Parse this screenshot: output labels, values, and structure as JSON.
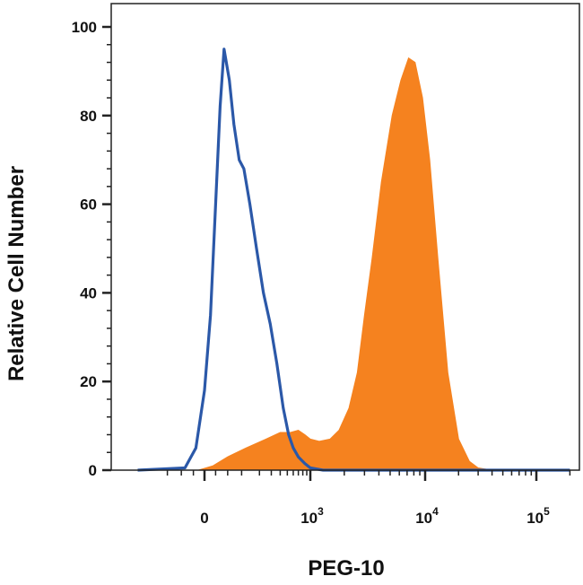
{
  "chart_data": {
    "type": "area",
    "title": "",
    "xlabel": "PEG-10",
    "ylabel": "Relative Cell Number",
    "x_scale": "biexponential",
    "xlim": [
      -300,
      200000
    ],
    "ylim": [
      0,
      100
    ],
    "y_ticks": [
      "0",
      "20",
      "40",
      "60",
      "80",
      "100"
    ],
    "x_ticks": [
      {
        "value": 0,
        "base": "0",
        "exp": ""
      },
      {
        "value": 1000,
        "base": "10",
        "exp": "3"
      },
      {
        "value": 10000,
        "base": "10",
        "exp": "4"
      },
      {
        "value": 100000,
        "base": "10",
        "exp": "5"
      }
    ],
    "grid": false,
    "series": [
      {
        "style": "filled",
        "color": "#f5821f",
        "points": [
          [
            -10,
            0
          ],
          [
            15,
            1
          ],
          [
            50,
            3
          ],
          [
            120,
            5
          ],
          [
            250,
            7
          ],
          [
            400,
            8.5
          ],
          [
            550,
            8.5
          ],
          [
            700,
            9
          ],
          [
            850,
            8
          ],
          [
            1000,
            7
          ],
          [
            1200,
            6.5
          ],
          [
            1500,
            7
          ],
          [
            1800,
            9
          ],
          [
            2200,
            14
          ],
          [
            2600,
            22
          ],
          [
            3000,
            35
          ],
          [
            3500,
            48
          ],
          [
            4200,
            65
          ],
          [
            5200,
            80
          ],
          [
            6200,
            88
          ],
          [
            7200,
            93
          ],
          [
            8200,
            92
          ],
          [
            9500,
            84
          ],
          [
            11000,
            70
          ],
          [
            13000,
            48
          ],
          [
            16000,
            22
          ],
          [
            20000,
            7
          ],
          [
            25000,
            2
          ],
          [
            30000,
            0.5
          ],
          [
            40000,
            0
          ]
        ]
      },
      {
        "style": "line",
        "color": "#2b58a8",
        "points": [
          [
            -300,
            0
          ],
          [
            -40,
            0.5
          ],
          [
            -15,
            5
          ],
          [
            0,
            18
          ],
          [
            10,
            35
          ],
          [
            20,
            60
          ],
          [
            30,
            82
          ],
          [
            40,
            95
          ],
          [
            55,
            88
          ],
          [
            70,
            78
          ],
          [
            90,
            70
          ],
          [
            110,
            68
          ],
          [
            140,
            60
          ],
          [
            180,
            50
          ],
          [
            230,
            40
          ],
          [
            290,
            33
          ],
          [
            360,
            24
          ],
          [
            440,
            14
          ],
          [
            520,
            8
          ],
          [
            600,
            5
          ],
          [
            700,
            3
          ],
          [
            850,
            1.5
          ],
          [
            1000,
            0.5
          ],
          [
            1300,
            0
          ],
          [
            200000,
            0
          ]
        ]
      }
    ]
  }
}
